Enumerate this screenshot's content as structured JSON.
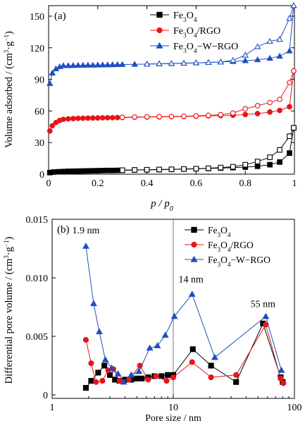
{
  "chart_data": [
    {
      "type": "line",
      "panel_label": "(a)",
      "xlabel": "p / p0",
      "ylabel": "Volume adsorbed / (cm³·g⁻¹)",
      "xlim": [
        0,
        1
      ],
      "ylim": [
        0,
        160
      ],
      "xticks": [
        0,
        0.2,
        0.4,
        0.6,
        0.8,
        1
      ],
      "xtick_labels": [
        "0",
        "0.2",
        "0.4",
        "0.6",
        "0.8",
        "1"
      ],
      "yticks": [
        0,
        30,
        60,
        90,
        120,
        150
      ],
      "ytick_labels": [
        "0",
        "30",
        "60",
        "90",
        "120",
        "150"
      ],
      "legend_position": "top-right",
      "series": [
        {
          "name": "Fe3O4",
          "name_main": "Fe",
          "name_sub": "3",
          "name_mid": "O",
          "name_sub2": "4",
          "name_tail": "",
          "color": "#000000",
          "marker": "square",
          "adsorption": {
            "x": [
              0.005,
              0.02,
              0.04,
              0.06,
              0.08,
              0.1,
              0.12,
              0.14,
              0.16,
              0.18,
              0.2,
              0.22,
              0.24,
              0.26,
              0.28,
              0.3,
              0.35,
              0.4,
              0.45,
              0.5,
              0.55,
              0.6,
              0.65,
              0.7,
              0.75,
              0.8,
              0.85,
              0.9,
              0.94,
              0.98,
              0.997
            ],
            "y": [
              1.5,
              2,
              2.3,
              2.5,
              2.7,
              2.8,
              2.9,
              3,
              3.1,
              3.2,
              3.3,
              3.4,
              3.5,
              3.5,
              3.6,
              3.7,
              3.9,
              4.1,
              4.3,
              4.5,
              4.8,
              5.1,
              5.4,
              5.8,
              6.2,
              6.7,
              7.5,
              9,
              11.5,
              20,
              44
            ]
          },
          "desorption": {
            "x": [
              0.997,
              0.98,
              0.94,
              0.9,
              0.85,
              0.8,
              0.75,
              0.7,
              0.65,
              0.6,
              0.55,
              0.5,
              0.45,
              0.4,
              0.35,
              0.3
            ],
            "y": [
              44,
              36,
              23,
              16,
              12,
              9,
              7,
              6.3,
              5.6,
              5.2,
              4.9,
              4.6,
              4.4,
              4.2,
              4,
              3.8
            ]
          }
        },
        {
          "name": "Fe3O4/RGO",
          "name_main": "Fe",
          "name_sub": "3",
          "name_mid": "O",
          "name_sub2": "4",
          "name_tail": "/RGO",
          "color": "#e8141b",
          "marker": "circle",
          "adsorption": {
            "x": [
              0.005,
              0.015,
              0.03,
              0.045,
              0.06,
              0.08,
              0.1,
              0.12,
              0.14,
              0.16,
              0.18,
              0.2,
              0.22,
              0.24,
              0.26,
              0.28,
              0.3,
              0.35,
              0.4,
              0.45,
              0.5,
              0.55,
              0.6,
              0.65,
              0.7,
              0.75,
              0.8,
              0.85,
              0.9,
              0.94,
              0.98,
              0.997
            ],
            "y": [
              41,
              46,
              49,
              51,
              52,
              52.5,
              52.8,
              53,
              53.1,
              53.2,
              53.3,
              53.4,
              53.5,
              53.6,
              53.6,
              53.7,
              53.8,
              54,
              54.2,
              54.4,
              54.6,
              54.8,
              55,
              55.3,
              55.6,
              56,
              56.6,
              57.5,
              59,
              60.5,
              64,
              98
            ]
          },
          "desorption": {
            "x": [
              0.997,
              0.98,
              0.94,
              0.9,
              0.85,
              0.8,
              0.75,
              0.7,
              0.65,
              0.6,
              0.55,
              0.5,
              0.45,
              0.4,
              0.35,
              0.3
            ],
            "y": [
              98,
              87,
              71,
              68,
              65,
              62,
              58,
              56.5,
              55.8,
              55.3,
              55,
              54.8,
              54.6,
              54.4,
              54.2,
              54
            ]
          }
        },
        {
          "name": "Fe3O4−W−RGO",
          "name_main": "Fe",
          "name_sub": "3",
          "name_mid": "O",
          "name_sub2": "4",
          "name_tail": "−W−RGO",
          "color": "#1f4fbf",
          "marker": "triangle",
          "adsorption": {
            "x": [
              0.005,
              0.015,
              0.03,
              0.045,
              0.06,
              0.08,
              0.1,
              0.12,
              0.14,
              0.16,
              0.18,
              0.2,
              0.22,
              0.24,
              0.26,
              0.28,
              0.3,
              0.35,
              0.4,
              0.45,
              0.5,
              0.55,
              0.6,
              0.65,
              0.7,
              0.75,
              0.8,
              0.85,
              0.9,
              0.94,
              0.98,
              0.997
            ],
            "y": [
              86,
              96,
              100,
              102,
              103,
              103,
              103.2,
              103.3,
              103.4,
              103.5,
              103.5,
              103.6,
              103.7,
              103.8,
              103.9,
              104,
              104.1,
              104.3,
              104.5,
              104.8,
              105,
              105.3,
              105.6,
              106,
              106.5,
              107,
              107.7,
              108.6,
              110,
              112,
              117,
              160
            ]
          },
          "desorption": {
            "x": [
              0.997,
              0.98,
              0.94,
              0.9,
              0.85,
              0.8,
              0.75,
              0.7,
              0.65,
              0.6,
              0.55,
              0.5,
              0.45,
              0.4
            ],
            "y": [
              160,
              148,
              128,
              126,
              121,
              113,
              108,
              106.5,
              106,
              105.7,
              105.4,
              105.1,
              104.8,
              104.5
            ]
          }
        }
      ]
    },
    {
      "type": "line",
      "panel_label": "(b)",
      "xlabel": "Pore size / nm",
      "ylabel": "Differential pore volume / (cm³·g⁻¹)",
      "xscale": "log",
      "xlim": [
        1,
        100
      ],
      "ylim": [
        -0.0003,
        0.015
      ],
      "xticks": [
        1,
        10,
        100
      ],
      "xtick_labels": [
        "1",
        "10",
        "100"
      ],
      "yticks": [
        0,
        0.005,
        0.01,
        0.015
      ],
      "ytick_labels": [
        "0",
        "0.005",
        "0.010",
        "0.015"
      ],
      "reference_line_x": 10,
      "legend_position": "top-right",
      "annotations": [
        {
          "text": "1.9 nm",
          "x": 1.9,
          "y": 0.0138
        },
        {
          "text": "14 nm",
          "x": 14,
          "y": 0.0096
        },
        {
          "text": "55 nm",
          "x": 55,
          "y": 0.0075
        }
      ],
      "series": [
        {
          "name": "Fe3O4",
          "name_main": "Fe",
          "name_sub": "3",
          "name_mid": "O",
          "name_sub2": "4",
          "name_tail": "",
          "color": "#000000",
          "marker": "square",
          "x": [
            1.9,
            2.1,
            2.4,
            2.7,
            3.0,
            3.3,
            3.6,
            4.0,
            4.5,
            5.0,
            5.5,
            6.2,
            7.0,
            8.0,
            9.0,
            10.0,
            14.5,
            20.5,
            33.0,
            55.0,
            77.0,
            80.0
          ],
          "y": [
            0.0006,
            0.0012,
            0.0019,
            0.0025,
            0.0017,
            0.0013,
            0.0012,
            0.0013,
            0.0013,
            0.0014,
            0.0014,
            0.0015,
            0.0016,
            0.0016,
            0.0017,
            0.0017,
            0.0039,
            0.0025,
            0.0011,
            0.0061,
            0.0015,
            0.0011
          ]
        },
        {
          "name": "Fe3O4/RGO",
          "name_main": "Fe",
          "name_sub": "3",
          "name_mid": "O",
          "name_sub2": "4",
          "name_tail": "/RGO",
          "color": "#e8141b",
          "marker": "circle",
          "x": [
            1.9,
            2.1,
            2.3,
            2.6,
            2.9,
            3.2,
            3.6,
            4.3,
            5.3,
            6.2,
            7.2,
            8.8,
            10.0,
            14.3,
            20.5,
            33.0,
            58.0,
            77.0,
            81.0
          ],
          "y": [
            0.0047,
            0.0027,
            0.0011,
            0.0012,
            0.0021,
            0.0022,
            0.0012,
            0.0013,
            0.0025,
            0.0013,
            0.0016,
            0.0012,
            0.0015,
            0.0028,
            0.0015,
            0.0017,
            0.006,
            0.0014,
            0.001
          ]
        },
        {
          "name": "Fe3O4−W−RGO",
          "name_main": "Fe",
          "name_sub": "3",
          "name_mid": "O",
          "name_sub2": "4",
          "name_tail": "−W−RGO",
          "color": "#1f4fbf",
          "marker": "triangle",
          "x": [
            1.9,
            2.2,
            2.45,
            2.75,
            3.1,
            3.5,
            3.9,
            4.5,
            5.2,
            6.4,
            7.4,
            8.6,
            10.2,
            14.3,
            22.0,
            58.0,
            78.0
          ],
          "y": [
            0.0127,
            0.0078,
            0.0054,
            0.003,
            0.0023,
            0.0018,
            0.0011,
            0.0017,
            0.002,
            0.004,
            0.0042,
            0.0051,
            0.0067,
            0.0086,
            0.0032,
            0.0067,
            0.0021
          ]
        }
      ]
    }
  ]
}
